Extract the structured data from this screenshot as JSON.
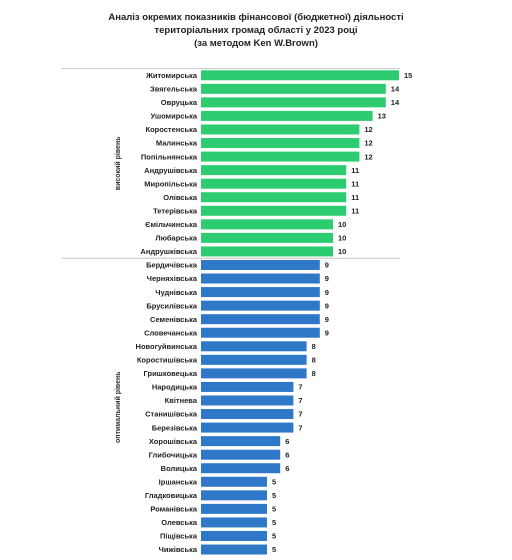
{
  "chart_data": {
    "type": "bar",
    "orientation": "horizontal",
    "title_lines": [
      "Аналіз окремих показників фінансової (бюджетної) діяльності",
      "територіальних громад області у 2023 році",
      "(за методом  Ken W.Brown)"
    ],
    "xlim": [
      0,
      16
    ],
    "grid": false,
    "groups": [
      {
        "label": "високий рівень",
        "color": "#2ecc71",
        "categories": [
          "Житомирська",
          "Звягельська",
          "Овруцька",
          "Ушомирська",
          "Коростенська",
          "Малинська",
          "Попільнянська",
          "Андрушівська",
          "Миропільська",
          "Олівська",
          "Тетерівська",
          "Ємільчинська",
          "Любарська",
          "Андрушківська"
        ],
        "values": [
          15,
          14,
          14,
          13,
          12,
          12,
          12,
          11,
          11,
          11,
          11,
          10,
          10,
          10
        ]
      },
      {
        "label": "оптимальний рівень",
        "color": "#2e78c7",
        "categories": [
          "Бердичівська",
          "Черняхівська",
          "Чуднівська",
          "Брусилівська",
          "Семенівська",
          "Словечанська",
          "Новогуйвинська",
          "Коростишівська",
          "Гришковецька",
          "Народицька",
          "Квітнева",
          "Станишівська",
          "Березівська",
          "Хорошівська",
          "Глибочицька",
          "Волицька",
          "Іршанська",
          "Гладковицька",
          "Романівська",
          "Олевська",
          "Піщівська",
          "Чижівська"
        ],
        "values": [
          9,
          9,
          9,
          9,
          9,
          9,
          8,
          8,
          8,
          7,
          7,
          7,
          7,
          6,
          6,
          6,
          5,
          5,
          5,
          5,
          5,
          5
        ]
      }
    ]
  }
}
